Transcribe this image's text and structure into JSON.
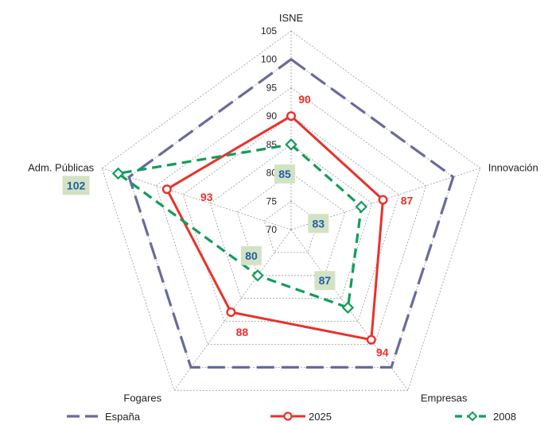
{
  "chart_data": {
    "type": "radar",
    "axes": [
      "ISNE",
      "Innovación",
      "Empresas",
      "Fogares",
      "Adm. Públicas"
    ],
    "rlim": [
      70,
      105
    ],
    "ticks": [
      70,
      75,
      80,
      85,
      90,
      95,
      100,
      105
    ],
    "series": [
      {
        "name": "España",
        "values": [
          100,
          100,
          100,
          100,
          100
        ],
        "color": "#6a6a9e",
        "style": "long-dash",
        "marker": "none",
        "show_labels": false
      },
      {
        "name": "2025",
        "values": [
          90,
          87,
          94,
          88,
          93
        ],
        "color": "#e8322b",
        "style": "solid",
        "marker": "circle",
        "show_labels": true
      },
      {
        "name": "2008",
        "values": [
          85,
          83,
          87,
          80,
          102
        ],
        "color": "#139c5a",
        "style": "dash",
        "marker": "diamond",
        "show_labels": true
      }
    ],
    "data_label_colors": {
      "2025": "#e8322b",
      "2008": "#1f5fa5"
    },
    "data_label_box_color": "#d4e2c4",
    "grid": true,
    "legend": "bottom"
  }
}
